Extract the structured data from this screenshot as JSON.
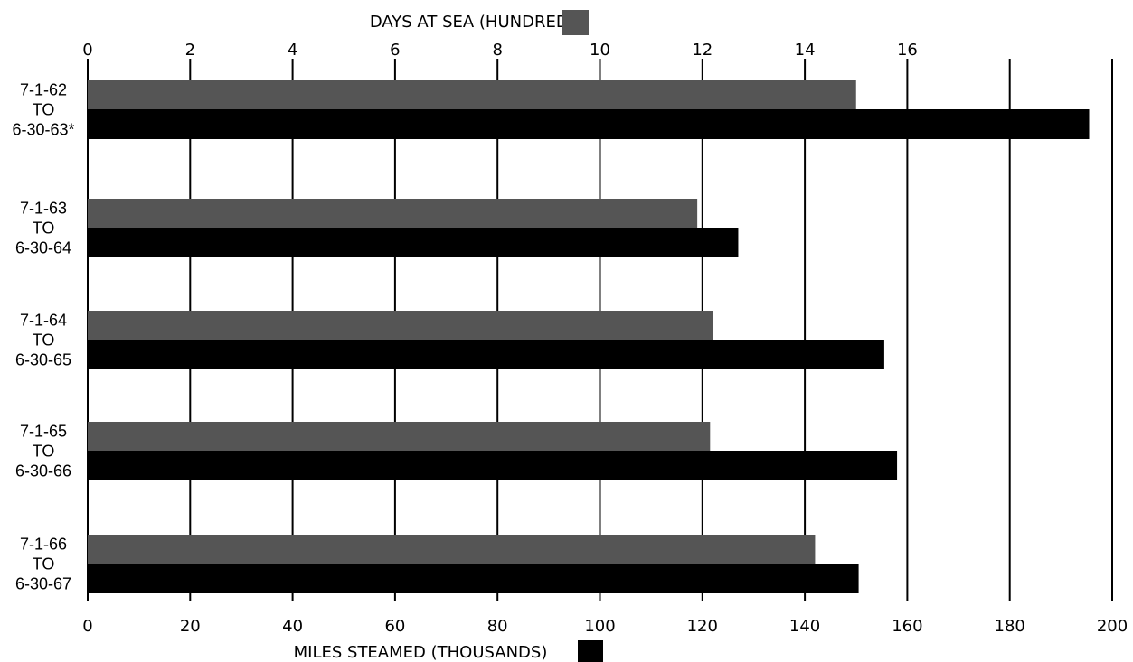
{
  "chart_data": {
    "type": "bar",
    "orientation": "horizontal",
    "top_axis": {
      "title": "DAYS AT SEA (HUNDREDS)",
      "range": [
        0,
        20
      ],
      "ticks": [
        "0",
        "2",
        "4",
        "6",
        "8",
        "10",
        "12",
        "14",
        "16"
      ]
    },
    "bottom_axis": {
      "title": "MILES STEAMED (THOUSANDS)",
      "range": [
        0,
        200
      ],
      "ticks": [
        "0",
        "20",
        "40",
        "60",
        "80",
        "100",
        "120",
        "140",
        "160",
        "180",
        "200"
      ]
    },
    "categories": [
      [
        "7-1-62",
        "TO",
        "6-30-63*"
      ],
      [
        "7-1-63",
        "TO",
        "6-30-64"
      ],
      [
        "7-1-64",
        "TO",
        "6-30-65"
      ],
      [
        "7-1-65",
        "TO",
        "6-30-66"
      ],
      [
        "7-1-66",
        "TO",
        "6-30-67"
      ]
    ],
    "series": [
      {
        "name": "DAYS AT SEA (HUNDREDS)",
        "axis": "top",
        "color": "#555555",
        "values": [
          15.0,
          11.9,
          12.2,
          12.15,
          14.2
        ]
      },
      {
        "name": "MILES STEAMED (THOUSANDS)",
        "axis": "bottom",
        "color": "#000000",
        "values": [
          195.5,
          127,
          155.5,
          158,
          150.5
        ]
      }
    ],
    "grid": true,
    "legend": "swatch after each axis title"
  }
}
